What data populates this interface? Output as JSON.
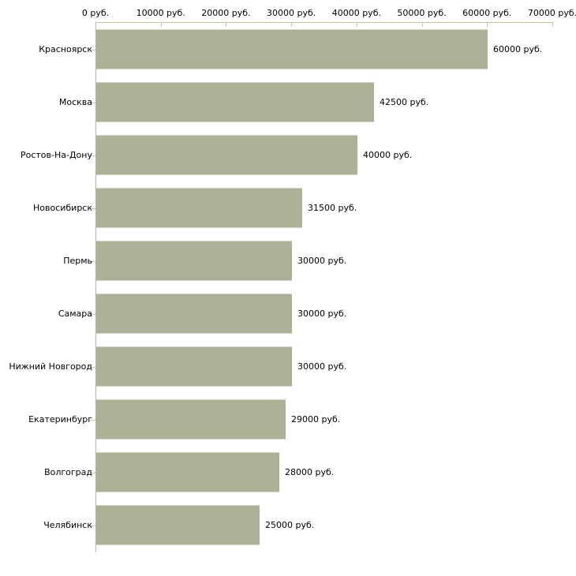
{
  "chart_data": {
    "type": "bar",
    "orientation": "horizontal",
    "title": "",
    "categories": [
      "Красноярск",
      "Москва",
      "Ростов-На-Дону",
      "Новосибирск",
      "Пермь",
      "Самара",
      "Нижний Новгород",
      "Екатеринбург",
      "Волгоград",
      "Челябинск"
    ],
    "values": [
      60000,
      42500,
      40000,
      31500,
      30000,
      30000,
      30000,
      29000,
      28000,
      25000
    ],
    "value_labels": [
      "60000 руб.",
      "42500 руб.",
      "40000 руб.",
      "31500 руб.",
      "30000 руб.",
      "30000 руб.",
      "30000 руб.",
      "29000 руб.",
      "28000 руб.",
      "25000 руб."
    ],
    "x_ticks": [
      0,
      10000,
      20000,
      30000,
      40000,
      50000,
      60000,
      70000
    ],
    "x_tick_labels": [
      "0 руб.",
      "10000 руб.",
      "20000 руб.",
      "30000 руб.",
      "40000 руб.",
      "50000 руб.",
      "60000 руб.",
      "70000 руб."
    ],
    "xlim": [
      0,
      70000
    ],
    "xlabel": "",
    "ylabel": "",
    "grid": false,
    "legend": false
  },
  "colors": {
    "bar_fill": "#acb296",
    "bar_edge": "#d3d6c7",
    "x_axis_line": "#c8c8a0",
    "y_axis_line": "#b3b3b3",
    "text": "#000000",
    "background": "#ffffff"
  }
}
